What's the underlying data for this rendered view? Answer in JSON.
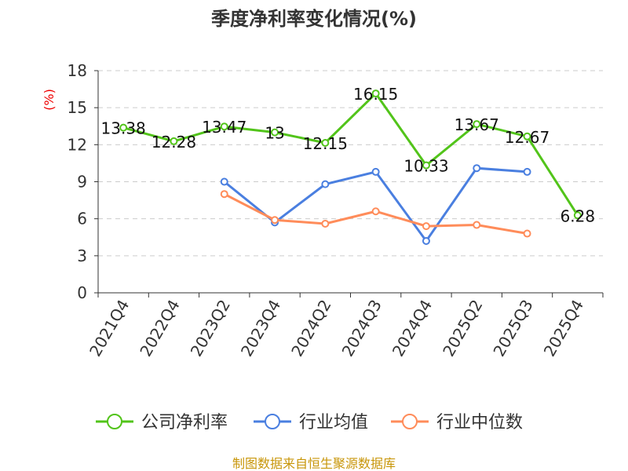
{
  "chart_data": {
    "type": "line",
    "title": "季度净利率变化情况(%)",
    "ylabel": "(%)",
    "xlabel": "",
    "ylim": [
      0,
      18
    ],
    "yticks": [
      0,
      3,
      6,
      9,
      12,
      15,
      18
    ],
    "grid": true,
    "legend_position": "bottom",
    "categories": [
      "2021Q4",
      "2022Q4",
      "2023Q2",
      "2023Q4",
      "2024Q2",
      "2024Q3",
      "2024Q4",
      "2025Q2",
      "2025Q3",
      "2025Q4"
    ],
    "series": [
      {
        "name": "公司净利率",
        "color": "#52c41a",
        "labels": true,
        "values": [
          13.38,
          12.28,
          13.47,
          13,
          12.15,
          16.15,
          10.33,
          13.67,
          12.67,
          6.28
        ]
      },
      {
        "name": "行业均值",
        "color": "#4a7fe0",
        "labels": false,
        "values": [
          null,
          null,
          9.0,
          5.7,
          8.8,
          9.8,
          4.2,
          10.1,
          9.8,
          null
        ]
      },
      {
        "name": "行业中位数",
        "color": "#ff8c5a",
        "labels": false,
        "values": [
          null,
          null,
          8.0,
          5.9,
          5.6,
          6.6,
          5.4,
          5.5,
          4.8,
          null
        ]
      }
    ]
  },
  "footer": {
    "source": "制图数据来自恒生聚源数据库"
  }
}
